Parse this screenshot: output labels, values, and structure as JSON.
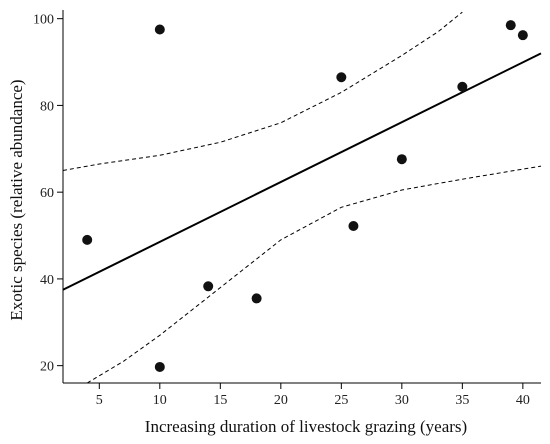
{
  "chart_data": {
    "type": "scatter",
    "title": "",
    "xlabel": "Increasing duration of livestock grazing (years)",
    "ylabel": "Exotic species (relative abundance)",
    "xlim": [
      2,
      41.5
    ],
    "ylim": [
      16,
      102
    ],
    "xticks": [
      5,
      10,
      15,
      20,
      25,
      30,
      35,
      40
    ],
    "yticks": [
      20,
      40,
      60,
      80,
      100
    ],
    "grid": false,
    "legend": "none",
    "points": [
      {
        "x": 4,
        "y": 49
      },
      {
        "x": 10,
        "y": 97.5
      },
      {
        "x": 10,
        "y": 19.7
      },
      {
        "x": 14,
        "y": 38.3
      },
      {
        "x": 18,
        "y": 35.5
      },
      {
        "x": 25,
        "y": 86.5
      },
      {
        "x": 26,
        "y": 52.2
      },
      {
        "x": 30,
        "y": 67.6
      },
      {
        "x": 35,
        "y": 84.3
      },
      {
        "x": 39,
        "y": 98.5
      },
      {
        "x": 40,
        "y": 96.2
      }
    ],
    "fit_line": {
      "style": "solid",
      "points": [
        {
          "x": 2,
          "y": 37.5
        },
        {
          "x": 41.5,
          "y": 92
        }
      ]
    },
    "confidence_band": {
      "style": "dashed",
      "upper": [
        {
          "x": 2,
          "y": 65
        },
        {
          "x": 5,
          "y": 66.5
        },
        {
          "x": 10,
          "y": 68.5
        },
        {
          "x": 15,
          "y": 71.5
        },
        {
          "x": 20,
          "y": 76
        },
        {
          "x": 25,
          "y": 83
        },
        {
          "x": 30,
          "y": 91.5
        },
        {
          "x": 33,
          "y": 97
        },
        {
          "x": 35,
          "y": 101.5
        }
      ],
      "lower": [
        {
          "x": 4,
          "y": 16
        },
        {
          "x": 7,
          "y": 21
        },
        {
          "x": 10,
          "y": 27
        },
        {
          "x": 15,
          "y": 38
        },
        {
          "x": 20,
          "y": 49
        },
        {
          "x": 25,
          "y": 56.5
        },
        {
          "x": 30,
          "y": 60.5
        },
        {
          "x": 35,
          "y": 63
        },
        {
          "x": 41.5,
          "y": 66
        }
      ]
    }
  }
}
